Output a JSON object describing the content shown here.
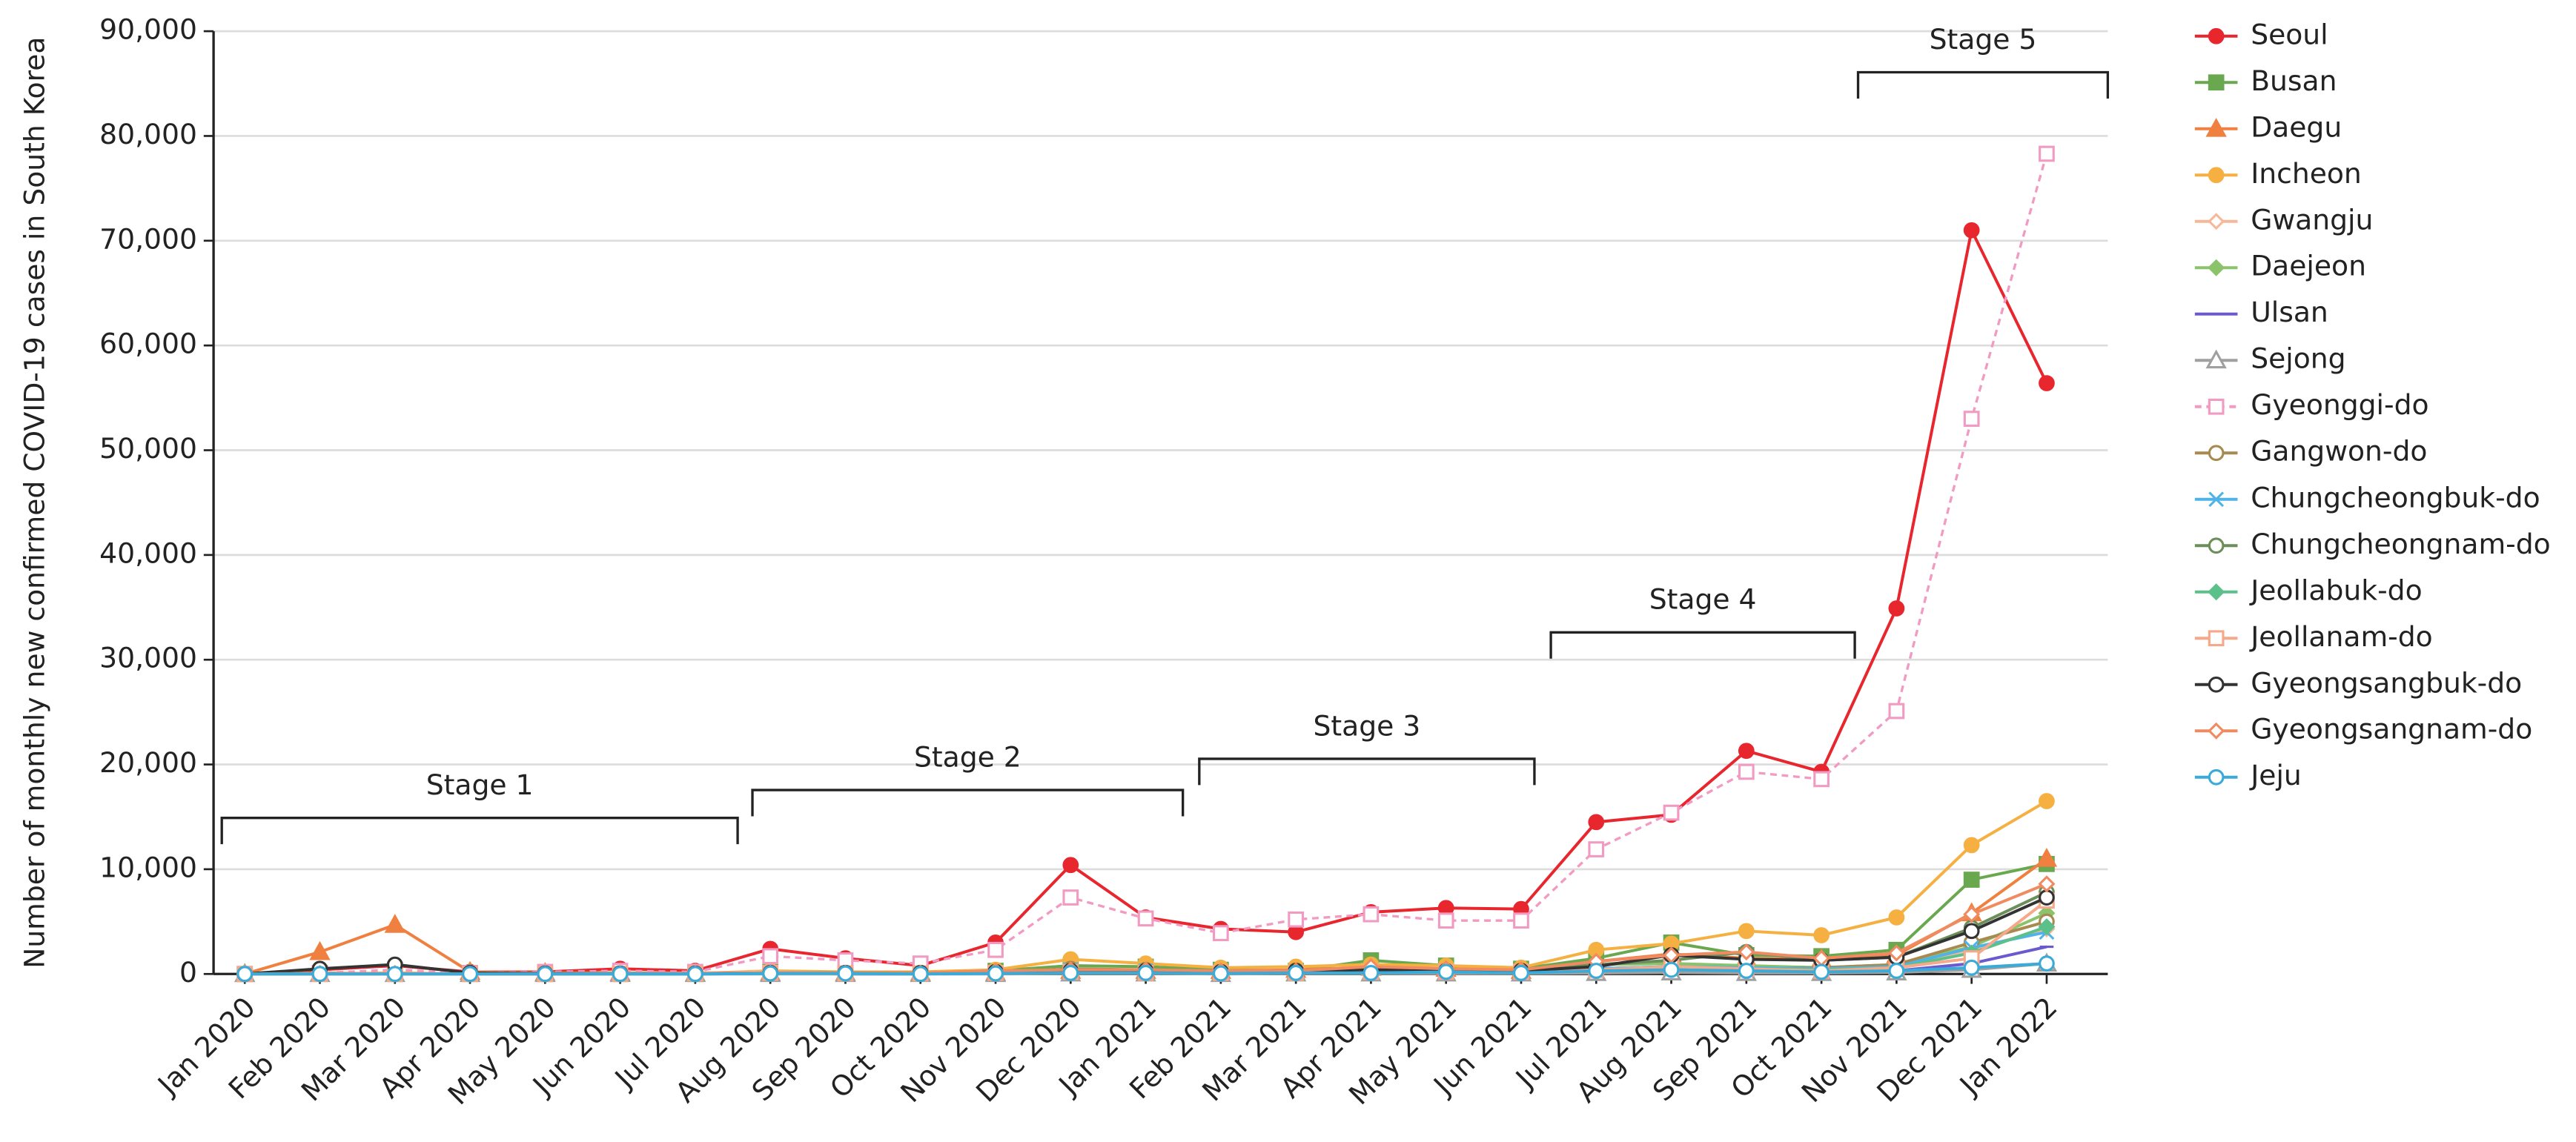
{
  "chart_data": {
    "type": "line",
    "y_label": "Number of monthly new confirmed COVID-19 cases in South Korea",
    "categories": [
      "Jan 2020",
      "Feb 2020",
      "Mar 2020",
      "Apr 2020",
      "May 2020",
      "Jun 2020",
      "Jul 2020",
      "Aug 2020",
      "Sep 2020",
      "Oct 2020",
      "Nov 2020",
      "Dec 2020",
      "Jan 2021",
      "Feb 2021",
      "Mar 2021",
      "Apr 2021",
      "May 2021",
      "Jun 2021",
      "Jul 2021",
      "Aug 2021",
      "Sep 2021",
      "Oct 2021",
      "Nov 2021",
      "Dec 2021",
      "Jan 2022"
    ],
    "ylim": [
      0,
      90000
    ],
    "yticks": [
      0,
      {
        "value": 10000,
        "label": "10,000"
      },
      {
        "value": 20000,
        "label": "20,000"
      },
      {
        "value": 30000,
        "label": "30,000"
      },
      {
        "value": 40000,
        "label": "40,000"
      },
      {
        "value": 50000,
        "label": "50,000"
      },
      {
        "value": 60000,
        "label": "60,000"
      },
      {
        "value": 70000,
        "label": "70,000"
      },
      {
        "value": 80000,
        "label": "80,000"
      },
      {
        "value": 90000,
        "label": "90,000"
      }
    ],
    "grid": true,
    "annotations": [
      "Stage 1",
      "Stage 2",
      "Stage 3",
      "Stage 4",
      "Stage 5"
    ],
    "series": [
      {
        "name": "Seoul",
        "color": "#e8262e",
        "marker": "circle",
        "values": [
          10,
          400,
          800,
          200,
          200,
          500,
          300,
          2400,
          1500,
          800,
          3000,
          10400,
          5400,
          4300,
          4000,
          5900,
          6300,
          6200,
          14500,
          15200,
          21300,
          19300,
          34900,
          71000,
          56400
        ]
      },
      {
        "name": "Busan",
        "color": "#6aa84f",
        "marker": "square",
        "values": [
          0,
          100,
          0,
          0,
          0,
          0,
          0,
          200,
          100,
          100,
          300,
          800,
          700,
          400,
          300,
          1300,
          800,
          500,
          1500,
          3000,
          1800,
          1700,
          2300,
          9000,
          10500
        ]
      },
      {
        "name": "Daegu",
        "color": "#f08040",
        "marker": "triangle",
        "values": [
          0,
          2100,
          4700,
          200,
          100,
          100,
          50,
          100,
          100,
          100,
          100,
          300,
          300,
          300,
          400,
          600,
          500,
          300,
          1200,
          1900,
          1500,
          1400,
          1800,
          5800,
          11000
        ]
      },
      {
        "name": "Incheon",
        "color": "#f5b041",
        "marker": "circle",
        "values": [
          0,
          0,
          100,
          0,
          100,
          100,
          50,
          300,
          200,
          200,
          400,
          1400,
          1000,
          600,
          700,
          900,
          800,
          600,
          2300,
          2900,
          4100,
          3700,
          5400,
          12300,
          16500
        ]
      },
      {
        "name": "Gwangju",
        "color": "#f7b89a",
        "marker": "open-diamond",
        "values": [
          0,
          0,
          0,
          0,
          0,
          50,
          100,
          200,
          100,
          50,
          100,
          200,
          200,
          100,
          200,
          300,
          300,
          200,
          500,
          700,
          700,
          500,
          700,
          2300,
          4300
        ]
      },
      {
        "name": "Daejeon",
        "color": "#8bc36a",
        "marker": "diamond",
        "values": [
          0,
          0,
          0,
          0,
          0,
          100,
          50,
          100,
          100,
          50,
          100,
          200,
          200,
          100,
          100,
          300,
          300,
          200,
          900,
          1000,
          800,
          600,
          900,
          2600,
          5800
        ]
      },
      {
        "name": "Ulsan",
        "color": "#6a5acd",
        "marker": "dash",
        "values": [
          0,
          0,
          0,
          0,
          0,
          0,
          0,
          100,
          0,
          0,
          200,
          400,
          200,
          100,
          100,
          600,
          200,
          100,
          500,
          600,
          300,
          200,
          300,
          1000,
          2600
        ]
      },
      {
        "name": "Sejong",
        "color": "#a0a0a0",
        "marker": "open-triangle",
        "values": [
          0,
          0,
          0,
          0,
          0,
          0,
          0,
          0,
          0,
          0,
          0,
          50,
          50,
          0,
          50,
          50,
          50,
          50,
          100,
          150,
          100,
          100,
          150,
          400,
          1000
        ]
      },
      {
        "name": "Gyeonggi-do",
        "color": "#f19ac2",
        "marker": "open-square",
        "dashed": true,
        "values": [
          0,
          100,
          400,
          100,
          200,
          300,
          200,
          1700,
          1300,
          1000,
          2300,
          7300,
          5300,
          3900,
          5200,
          5700,
          5100,
          5100,
          11900,
          15400,
          19300,
          18600,
          25100,
          53000,
          78300
        ]
      },
      {
        "name": "Gangwon-do",
        "color": "#a68a50",
        "marker": "open-circle",
        "values": [
          0,
          0,
          0,
          0,
          0,
          0,
          0,
          50,
          50,
          100,
          100,
          500,
          400,
          200,
          200,
          300,
          200,
          200,
          500,
          700,
          500,
          600,
          900,
          3000,
          5000
        ]
      },
      {
        "name": "Chungcheongbuk-do",
        "color": "#4fb3e8",
        "marker": "x",
        "values": [
          0,
          0,
          0,
          0,
          0,
          0,
          0,
          50,
          50,
          50,
          100,
          400,
          300,
          100,
          200,
          200,
          200,
          200,
          500,
          700,
          600,
          500,
          700,
          2500,
          4000
        ]
      },
      {
        "name": "Chungcheongnam-do",
        "color": "#6b8e5a",
        "marker": "open-circle",
        "values": [
          0,
          0,
          0,
          0,
          0,
          50,
          50,
          100,
          100,
          100,
          200,
          300,
          300,
          200,
          300,
          300,
          300,
          300,
          900,
          1300,
          2100,
          1300,
          1600,
          4400,
          7800
        ]
      },
      {
        "name": "Jeollabuk-do",
        "color": "#5cc08a",
        "marker": "diamond",
        "values": [
          0,
          0,
          0,
          0,
          0,
          0,
          0,
          50,
          50,
          50,
          100,
          200,
          200,
          100,
          200,
          300,
          200,
          100,
          400,
          600,
          500,
          400,
          600,
          2000,
          4500
        ]
      },
      {
        "name": "Jeollanam-do",
        "color": "#f5a88a",
        "marker": "open-square",
        "values": [
          0,
          0,
          0,
          0,
          0,
          0,
          50,
          100,
          50,
          50,
          100,
          200,
          100,
          100,
          100,
          200,
          200,
          200,
          400,
          700,
          500,
          300,
          600,
          1500,
          7000
        ]
      },
      {
        "name": "Gyeongsangbuk-do",
        "color": "#333333",
        "marker": "open-circle",
        "values": [
          0,
          500,
          900,
          100,
          50,
          50,
          50,
          100,
          100,
          100,
          200,
          300,
          300,
          200,
          300,
          400,
          300,
          300,
          700,
          1800,
          1400,
          1300,
          1600,
          4100,
          7300
        ]
      },
      {
        "name": "Gyeongsangnam-do",
        "color": "#f08a60",
        "marker": "open-diamond",
        "values": [
          0,
          50,
          50,
          0,
          0,
          50,
          50,
          100,
          100,
          100,
          300,
          400,
          400,
          300,
          300,
          700,
          500,
          400,
          1200,
          1800,
          2100,
          1500,
          2000,
          5700,
          8600
        ]
      },
      {
        "name": "Jeju",
        "color": "#3aaad8",
        "marker": "open-circle",
        "values": [
          0,
          0,
          0,
          0,
          0,
          0,
          0,
          50,
          50,
          0,
          50,
          100,
          100,
          50,
          100,
          100,
          200,
          100,
          300,
          400,
          300,
          200,
          300,
          600,
          1000
        ]
      }
    ]
  }
}
